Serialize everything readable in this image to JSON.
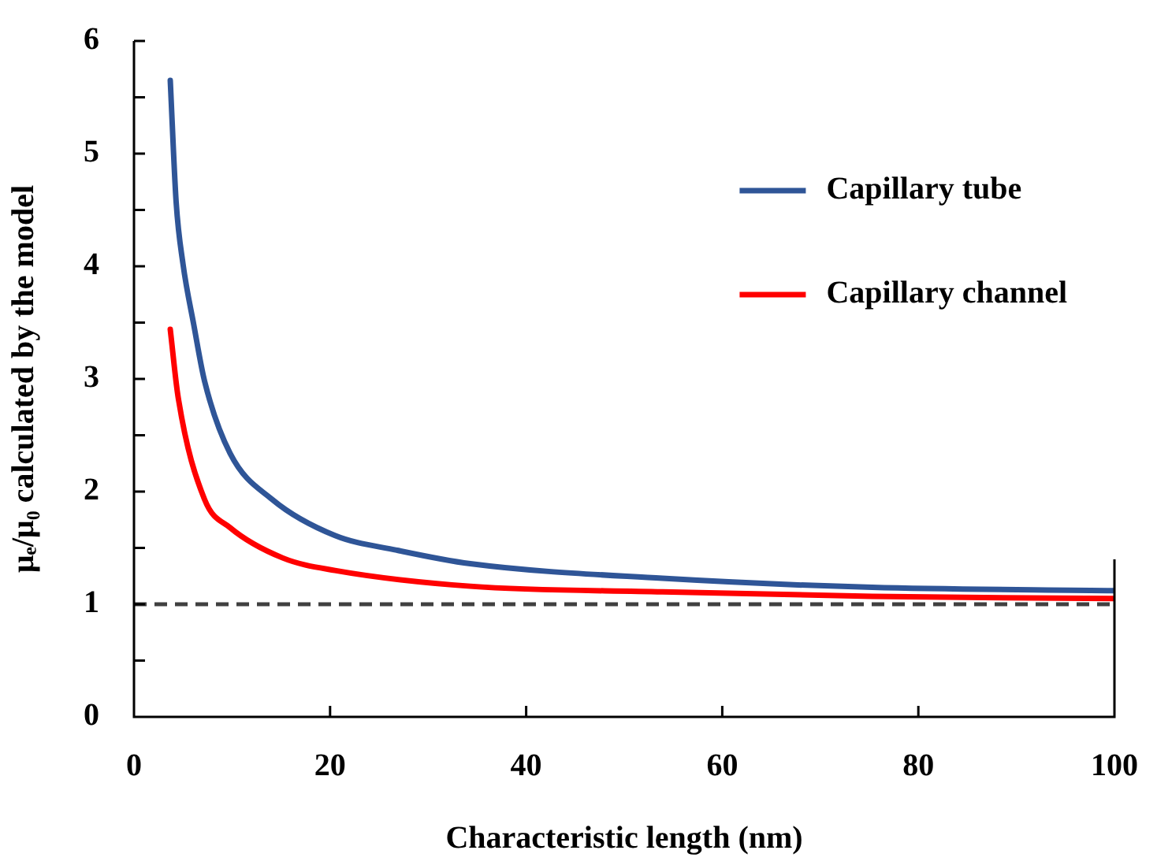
{
  "chart_data": {
    "type": "line",
    "xlabel": "Characteristic length (nm)",
    "ylabel": "μₑ/μ₀ calculated by the model",
    "xlim": [
      0,
      100
    ],
    "xticks": [
      0,
      20,
      40,
      60,
      80,
      100
    ],
    "ylim": [
      0,
      6
    ],
    "yticks": [
      0,
      {
        "value": 0.5,
        "label": null
      },
      1,
      {
        "value": 1.5,
        "label": null
      },
      2,
      {
        "value": 2.5,
        "label": null
      },
      3,
      {
        "value": 3.5,
        "label": null
      },
      4,
      {
        "value": 4.5,
        "label": null
      },
      5,
      {
        "value": 5.5,
        "label": null
      },
      6
    ],
    "grid": false,
    "legend": "top right",
    "marker": "none",
    "line_style": "solid",
    "series": [
      {
        "name": "Capillary tube",
        "color": "#2f5597",
        "x": [
          3.7,
          4.3,
          5.0,
          6.1,
          7.2,
          9.8,
          14.1,
          20.5,
          26.8,
          34.3,
          53.9,
          75.3,
          100
        ],
        "values": [
          5.65,
          4.57,
          4.02,
          3.48,
          2.98,
          2.34,
          1.93,
          1.61,
          1.48,
          1.36,
          1.23,
          1.15,
          1.12
        ]
      },
      {
        "name": "Capillary channel",
        "color": "#ff0000",
        "x": [
          3.7,
          4.5,
          7.2,
          9.8,
          15.2,
          20.5,
          34.3,
          53.9,
          75.3,
          100
        ],
        "values": [
          3.44,
          2.84,
          1.93,
          1.68,
          1.41,
          1.3,
          1.16,
          1.11,
          1.07,
          1.05
        ]
      }
    ],
    "ref_lines": [
      {
        "axis": "y",
        "value": 1,
        "color": "#404040",
        "line_style": "dashed"
      }
    ]
  }
}
